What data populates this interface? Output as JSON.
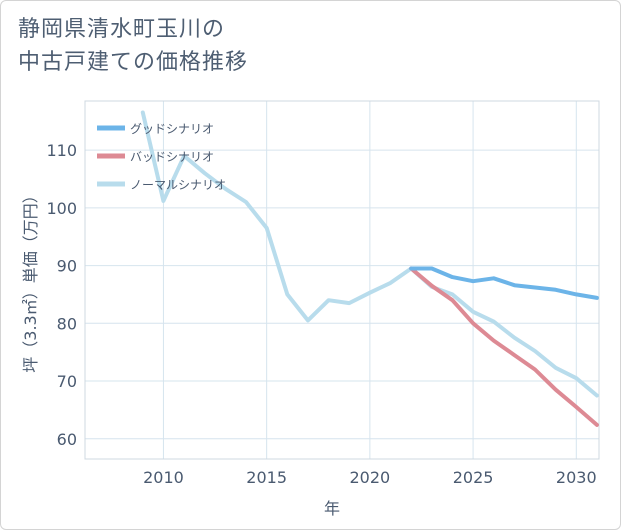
{
  "title": {
    "line1": "静岡県清水町玉川の",
    "line2": "中古戸建ての価格推移"
  },
  "chart_data": {
    "type": "line",
    "xlabel": "年",
    "ylabel": "坪（3.3㎡）単価（万円）",
    "xlim": [
      2006.2,
      2031.1
    ],
    "ylim": [
      56.5,
      118.5
    ],
    "xticks": [
      2010,
      2015,
      2020,
      2025,
      2030
    ],
    "yticks": [
      60,
      70,
      80,
      90,
      100,
      110
    ],
    "grid": true,
    "legend_position": "top-left",
    "series": [
      {
        "name": "グッドシナリオ",
        "color": "#6cb4e8",
        "x": [
          2022,
          2023,
          2024,
          2025,
          2026,
          2027,
          2028,
          2029,
          2030,
          2031
        ],
        "y": [
          89.5,
          89.5,
          88.0,
          87.3,
          87.8,
          86.6,
          86.2,
          85.8,
          85.0,
          84.4
        ]
      },
      {
        "name": "バッドシナリオ",
        "color": "#dd8a94",
        "x": [
          2022,
          2023,
          2024,
          2025,
          2026,
          2027,
          2028,
          2029,
          2030,
          2031
        ],
        "y": [
          89.5,
          86.5,
          84.0,
          80.0,
          77.0,
          74.5,
          72.0,
          68.5,
          65.5,
          62.4
        ]
      },
      {
        "name": "ノーマルシナリオ",
        "color": "#b8dcec",
        "x": [
          2009,
          2010,
          2011,
          2012,
          2013,
          2014,
          2015,
          2016,
          2017,
          2018,
          2019,
          2020,
          2021,
          2022,
          2023,
          2024,
          2025,
          2026,
          2027,
          2028,
          2029,
          2030,
          2031
        ],
        "y": [
          116.5,
          101.2,
          109.0,
          106.0,
          103.3,
          101.0,
          96.5,
          85.0,
          80.5,
          84.0,
          83.5,
          85.3,
          87.0,
          89.5,
          86.3,
          85.0,
          82.0,
          80.3,
          77.5,
          75.2,
          72.3,
          70.5,
          67.5
        ]
      }
    ]
  }
}
